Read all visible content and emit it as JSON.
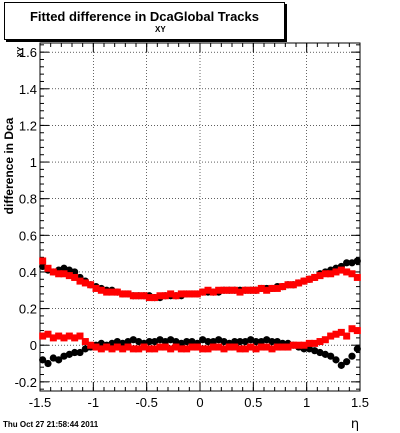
{
  "chart_data": {
    "type": "scatter",
    "title": "Fitted difference in Dca",
    "title_subscript": "XY",
    "title_suffix": "Global Tracks",
    "ylabel": "difference in Dca",
    "ylabel_subscript": "XY",
    "xlabel": "η",
    "xlim": [
      -1.5,
      1.5
    ],
    "ylim": [
      -0.25,
      1.65
    ],
    "xticks": [
      -1.5,
      -1,
      -0.5,
      0,
      0.5,
      1,
      1.5
    ],
    "xtick_labels": [
      "-1.5",
      "-1",
      "-0.5",
      "0",
      "0.5",
      "1",
      "1.5"
    ],
    "yticks": [
      -0.2,
      0,
      0.2,
      0.4,
      0.6,
      0.8,
      1,
      1.2,
      1.4,
      1.6
    ],
    "ytick_labels": [
      "-0.2",
      "0",
      "0.2",
      "0.4",
      "0.6",
      "0.8",
      "1",
      "1.2",
      "1.4",
      "1.6"
    ],
    "grid": true,
    "colors": {
      "black": "#000000",
      "red": "#ff0000"
    },
    "series": [
      {
        "color": "black",
        "x": [
          -1.475,
          -1.425,
          -1.375,
          -1.325,
          -1.275,
          -1.225,
          -1.175,
          -1.125,
          -1.075,
          -1.025,
          -0.975,
          -0.925,
          -0.875,
          -0.825,
          -0.775,
          -0.725,
          -0.675,
          -0.625,
          -0.575,
          -0.525,
          -0.475,
          -0.425,
          -0.375,
          -0.325,
          -0.275,
          -0.225,
          -0.175,
          -0.125,
          -0.075,
          -0.025,
          0.025,
          0.075,
          0.125,
          0.175,
          0.225,
          0.275,
          0.325,
          0.375,
          0.425,
          0.475,
          0.525,
          0.575,
          0.625,
          0.675,
          0.725,
          0.775,
          0.825,
          0.875,
          0.925,
          0.975,
          1.025,
          1.075,
          1.125,
          1.175,
          1.225,
          1.275,
          1.325,
          1.375,
          1.425,
          1.475
        ],
        "y": [
          0.43,
          0.41,
          0.4,
          0.41,
          0.42,
          0.41,
          0.4,
          0.37,
          0.35,
          0.33,
          0.32,
          0.31,
          0.3,
          0.3,
          0.29,
          0.28,
          0.28,
          0.27,
          0.27,
          0.27,
          0.27,
          0.26,
          0.26,
          0.27,
          0.27,
          0.27,
          0.27,
          0.28,
          0.28,
          0.28,
          0.29,
          0.29,
          0.29,
          0.29,
          0.3,
          0.3,
          0.3,
          0.3,
          0.3,
          0.3,
          0.3,
          0.31,
          0.31,
          0.31,
          0.32,
          0.32,
          0.33,
          0.33,
          0.34,
          0.35,
          0.36,
          0.37,
          0.39,
          0.4,
          0.41,
          0.42,
          0.43,
          0.45,
          0.45,
          0.46
        ]
      },
      {
        "color": "red",
        "x": [
          -1.475,
          -1.425,
          -1.375,
          -1.325,
          -1.275,
          -1.225,
          -1.175,
          -1.125,
          -1.075,
          -1.025,
          -0.975,
          -0.925,
          -0.875,
          -0.825,
          -0.775,
          -0.725,
          -0.675,
          -0.625,
          -0.575,
          -0.525,
          -0.475,
          -0.425,
          -0.375,
          -0.325,
          -0.275,
          -0.225,
          -0.175,
          -0.125,
          -0.075,
          -0.025,
          0.025,
          0.075,
          0.125,
          0.175,
          0.225,
          0.275,
          0.325,
          0.375,
          0.425,
          0.475,
          0.525,
          0.575,
          0.625,
          0.675,
          0.725,
          0.775,
          0.825,
          0.875,
          0.925,
          0.975,
          1.025,
          1.075,
          1.125,
          1.175,
          1.225,
          1.275,
          1.325,
          1.375,
          1.425,
          1.475
        ],
        "y": [
          0.46,
          0.42,
          0.4,
          0.39,
          0.39,
          0.38,
          0.37,
          0.35,
          0.34,
          0.33,
          0.31,
          0.3,
          0.29,
          0.29,
          0.29,
          0.28,
          0.28,
          0.27,
          0.27,
          0.27,
          0.26,
          0.26,
          0.27,
          0.27,
          0.28,
          0.27,
          0.28,
          0.28,
          0.28,
          0.28,
          0.29,
          0.3,
          0.29,
          0.3,
          0.3,
          0.3,
          0.3,
          0.29,
          0.3,
          0.3,
          0.3,
          0.31,
          0.3,
          0.31,
          0.31,
          0.32,
          0.33,
          0.33,
          0.34,
          0.35,
          0.36,
          0.37,
          0.38,
          0.39,
          0.39,
          0.4,
          0.41,
          0.4,
          0.39,
          0.37
        ]
      },
      {
        "color": "black",
        "x": [
          -1.475,
          -1.425,
          -1.375,
          -1.325,
          -1.275,
          -1.225,
          -1.175,
          -1.125,
          -1.075,
          -1.025,
          -0.975,
          -0.925,
          -0.875,
          -0.825,
          -0.775,
          -0.725,
          -0.675,
          -0.625,
          -0.575,
          -0.525,
          -0.475,
          -0.425,
          -0.375,
          -0.325,
          -0.275,
          -0.225,
          -0.175,
          -0.125,
          -0.075,
          -0.025,
          0.025,
          0.075,
          0.125,
          0.175,
          0.225,
          0.275,
          0.325,
          0.375,
          0.425,
          0.475,
          0.525,
          0.575,
          0.625,
          0.675,
          0.725,
          0.775,
          0.825,
          0.875,
          0.925,
          0.975,
          1.025,
          1.075,
          1.125,
          1.175,
          1.225,
          1.275,
          1.325,
          1.375,
          1.425,
          1.475
        ],
        "y": [
          -0.08,
          -0.1,
          -0.07,
          -0.08,
          -0.06,
          -0.05,
          -0.04,
          -0.04,
          -0.02,
          -0.01,
          0.0,
          0.01,
          0.0,
          0.01,
          0.02,
          0.01,
          0.02,
          0.03,
          0.02,
          0.01,
          0.02,
          0.02,
          0.03,
          0.02,
          0.03,
          0.02,
          0.01,
          0.02,
          0.02,
          0.01,
          0.03,
          0.02,
          0.02,
          0.03,
          0.02,
          0.01,
          0.02,
          0.02,
          0.02,
          0.03,
          0.02,
          0.02,
          0.03,
          0.02,
          0.02,
          0.01,
          0.01,
          0.0,
          -0.01,
          -0.02,
          -0.02,
          -0.03,
          -0.04,
          -0.05,
          -0.06,
          -0.08,
          -0.11,
          -0.09,
          -0.06,
          -0.02
        ]
      },
      {
        "color": "red",
        "x": [
          -1.475,
          -1.425,
          -1.375,
          -1.325,
          -1.275,
          -1.225,
          -1.175,
          -1.125,
          -1.075,
          -1.025,
          -0.975,
          -0.925,
          -0.875,
          -0.825,
          -0.775,
          -0.725,
          -0.675,
          -0.625,
          -0.575,
          -0.525,
          -0.475,
          -0.425,
          -0.375,
          -0.325,
          -0.275,
          -0.225,
          -0.175,
          -0.125,
          -0.075,
          -0.025,
          0.025,
          0.075,
          0.125,
          0.175,
          0.225,
          0.275,
          0.325,
          0.375,
          0.425,
          0.475,
          0.525,
          0.575,
          0.625,
          0.675,
          0.725,
          0.775,
          0.825,
          0.875,
          0.925,
          0.975,
          1.025,
          1.075,
          1.125,
          1.175,
          1.225,
          1.275,
          1.325,
          1.375,
          1.425,
          1.475
        ],
        "y": [
          0.05,
          0.06,
          0.04,
          0.05,
          0.04,
          0.05,
          0.04,
          0.05,
          0.02,
          0.0,
          -0.01,
          -0.02,
          -0.01,
          -0.02,
          -0.01,
          -0.02,
          -0.01,
          -0.02,
          -0.02,
          -0.01,
          -0.02,
          -0.02,
          -0.01,
          -0.01,
          -0.02,
          -0.01,
          -0.02,
          -0.02,
          -0.01,
          -0.01,
          -0.02,
          -0.02,
          -0.01,
          -0.01,
          -0.02,
          -0.01,
          -0.01,
          -0.02,
          -0.02,
          -0.01,
          -0.02,
          -0.01,
          -0.01,
          -0.02,
          -0.01,
          -0.01,
          -0.01,
          0.0,
          0.0,
          0.0,
          0.01,
          0.01,
          0.02,
          0.03,
          0.05,
          0.06,
          0.07,
          0.05,
          0.09,
          0.08
        ]
      }
    ]
  },
  "timestamp": "Thu Oct 27 21:58:44 2011"
}
